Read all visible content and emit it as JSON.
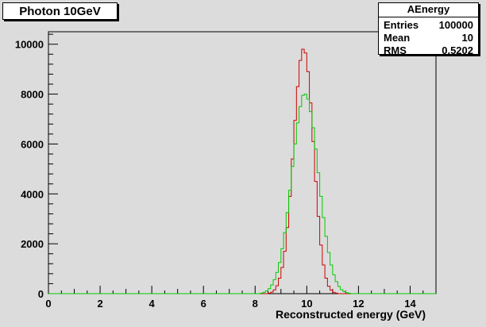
{
  "title": "Photon 10GeV",
  "stats": {
    "name": "AEnergy",
    "rows": [
      {
        "label": "Entries",
        "value": "100000"
      },
      {
        "label": "Mean",
        "value": "10"
      },
      {
        "label": "RMS",
        "value": "0.5202"
      }
    ]
  },
  "chart_data": {
    "type": "histogram",
    "xlabel": "Reconstructed energy (GeV)",
    "ylabel": "",
    "xlim": [
      0,
      15
    ],
    "ylim": [
      0,
      10500
    ],
    "xticks": [
      0,
      2,
      4,
      6,
      8,
      10,
      12,
      14
    ],
    "yticks": [
      0,
      2000,
      4000,
      6000,
      8000,
      10000
    ],
    "grid": false,
    "legend": "none",
    "bin_width": 0.1,
    "series": [
      {
        "color": "#d00000",
        "x_start": 8.5,
        "values": [
          20,
          60,
          150,
          320,
          620,
          1050,
          1700,
          2650,
          3900,
          5400,
          6950,
          8300,
          9350,
          9800,
          9650,
          8900,
          7650,
          6100,
          4500,
          3100,
          1950,
          1150,
          620,
          300,
          140,
          55,
          20,
          0
        ]
      },
      {
        "color": "#00cc00",
        "x_start": 8.2,
        "values": [
          20,
          50,
          110,
          200,
          350,
          560,
          850,
          1250,
          1800,
          2450,
          3250,
          4150,
          5100,
          6000,
          6850,
          7500,
          7950,
          8000,
          7800,
          7300,
          6650,
          5800,
          4850,
          3900,
          3050,
          2300,
          1650,
          1150,
          760,
          480,
          290,
          160,
          85,
          40,
          15,
          0
        ]
      }
    ]
  },
  "colors": {
    "background": "#dcdcdc",
    "frame": "#000000"
  }
}
